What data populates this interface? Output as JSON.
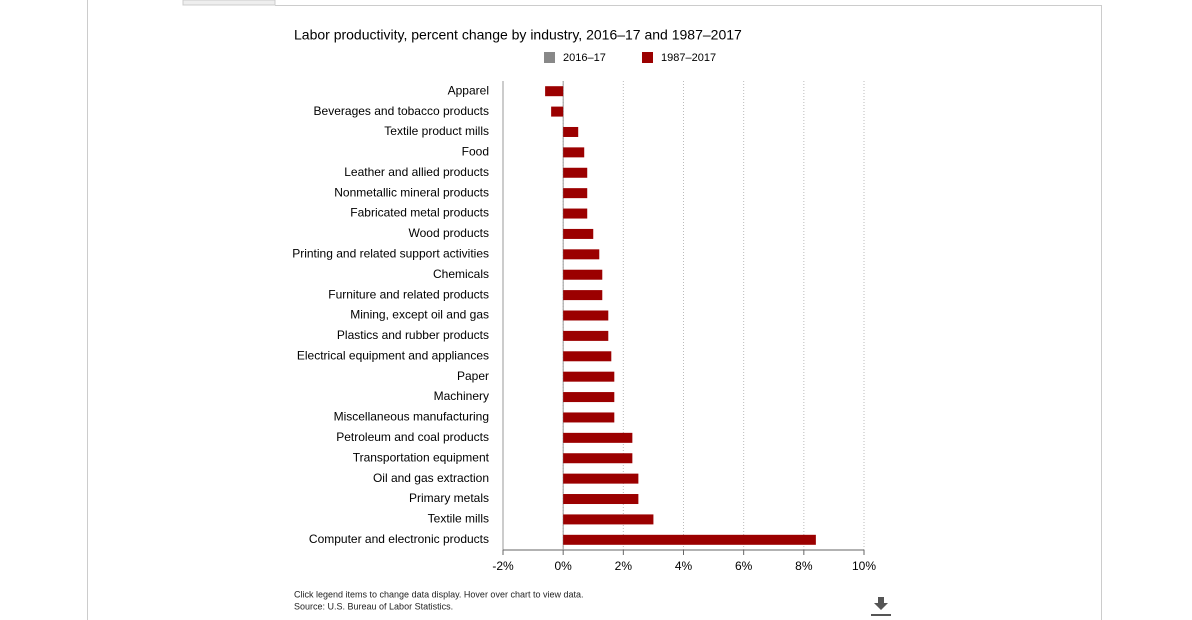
{
  "chart_data": {
    "type": "barh",
    "title": "Labor productivity, percent change by industry, 2016–17 and 1987–2017",
    "categories": [
      "Apparel",
      "Beverages and tobacco products",
      "Textile product mills",
      "Food",
      "Leather and allied products",
      "Nonmetallic mineral products",
      "Fabricated metal products",
      "Wood products",
      "Printing and related support activities",
      "Chemicals",
      "Furniture and related products",
      "Mining, except oil and gas",
      "Plastics and rubber products",
      "Electrical equipment and appliances",
      "Paper",
      "Machinery",
      "Miscellaneous manufacturing",
      "Petroleum and coal products",
      "Transportation equipment",
      "Oil and gas extraction",
      "Primary metals",
      "Textile mills",
      "Computer and electronic products"
    ],
    "series": [
      {
        "name": "2016–17",
        "color": "#888888",
        "visible": false,
        "values": [
          null,
          null,
          null,
          null,
          null,
          null,
          null,
          null,
          null,
          null,
          null,
          null,
          null,
          null,
          null,
          null,
          null,
          null,
          null,
          null,
          null,
          null,
          null
        ]
      },
      {
        "name": "1987–2017",
        "color": "#9b0000",
        "visible": true,
        "values": [
          -0.6,
          -0.4,
          0.5,
          0.7,
          0.8,
          0.8,
          0.8,
          1.0,
          1.2,
          1.3,
          1.3,
          1.5,
          1.5,
          1.6,
          1.7,
          1.7,
          1.7,
          2.3,
          2.3,
          2.5,
          2.5,
          3.0,
          8.4
        ]
      }
    ],
    "xlim": [
      -2,
      10
    ],
    "xticks": [
      {
        "value": -2,
        "label": "-2%"
      },
      {
        "value": 0,
        "label": "0%"
      },
      {
        "value": 2,
        "label": "2%"
      },
      {
        "value": 4,
        "label": "4%"
      },
      {
        "value": 6,
        "label": "6%"
      },
      {
        "value": 8,
        "label": "8%"
      },
      {
        "value": 10,
        "label": "10%"
      }
    ],
    "grid": true,
    "notes": [
      "Click legend items to change data display. Hover over chart to view data.",
      "Source: U.S. Bureau of Labor Statistics."
    ]
  }
}
